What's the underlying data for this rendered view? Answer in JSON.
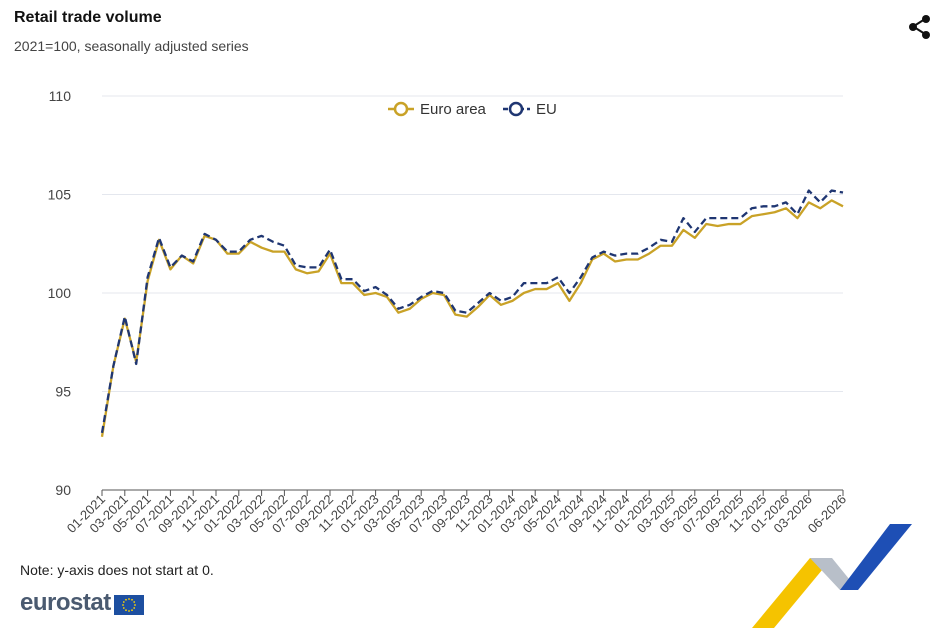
{
  "header": {
    "title": "Retail trade volume",
    "subtitle": "2021=100, seasonally adjusted series"
  },
  "icons": {
    "share": "share-icon"
  },
  "note": "Note: y-axis does not start at 0.",
  "brand": {
    "name": "eurostat"
  },
  "colors": {
    "euro_area": "#c9a227",
    "eu": "#1f3672",
    "grid": "#e4e7ee"
  },
  "chart_data": {
    "type": "line",
    "title": "Retail trade volume",
    "subtitle": "2021=100, seasonally adjusted series",
    "ylim": [
      90,
      110
    ],
    "yticks": [
      90,
      95,
      100,
      105,
      110
    ],
    "grid": true,
    "legend": "top-center",
    "x": [
      "01-2021",
      "02-2021",
      "03-2021",
      "04-2021",
      "05-2021",
      "06-2021",
      "07-2021",
      "08-2021",
      "09-2021",
      "10-2021",
      "11-2021",
      "12-2021",
      "01-2022",
      "02-2022",
      "03-2022",
      "04-2022",
      "05-2022",
      "06-2022",
      "07-2022",
      "08-2022",
      "09-2022",
      "10-2022",
      "11-2022",
      "12-2022",
      "01-2023",
      "02-2023",
      "03-2023",
      "04-2023",
      "05-2023",
      "06-2023",
      "07-2023",
      "08-2023",
      "09-2023",
      "10-2023",
      "11-2023",
      "12-2023",
      "01-2024",
      "02-2024",
      "03-2024",
      "04-2024",
      "05-2024",
      "06-2024",
      "07-2024",
      "08-2024",
      "09-2024",
      "10-2024",
      "11-2024",
      "12-2024",
      "01-2025",
      "02-2025",
      "03-2025",
      "04-2025",
      "05-2025",
      "06-2025",
      "07-2025",
      "08-2025",
      "09-2025",
      "10-2025",
      "11-2025",
      "12-2025",
      "01-2026",
      "02-2026",
      "03-2026",
      "04-2026",
      "05-2026",
      "06-2026"
    ],
    "xticks": [
      "01-2021",
      "03-2021",
      "05-2021",
      "07-2021",
      "09-2021",
      "11-2021",
      "01-2022",
      "03-2022",
      "05-2022",
      "07-2022",
      "09-2022",
      "11-2022",
      "01-2023",
      "03-2023",
      "05-2023",
      "07-2023",
      "09-2023",
      "11-2023",
      "01-2024",
      "03-2024",
      "05-2024",
      "07-2024",
      "09-2024",
      "11-2024",
      "01-2025",
      "03-2025",
      "05-2025",
      "07-2025",
      "09-2025",
      "11-2025",
      "01-2026",
      "03-2026",
      "06-2026"
    ],
    "series": [
      {
        "name": "Euro area",
        "color": "#c9a227",
        "dash": "solid",
        "values": [
          92.7,
          96.3,
          98.7,
          96.5,
          100.6,
          102.7,
          101.2,
          101.9,
          101.5,
          102.9,
          102.7,
          102.0,
          102.0,
          102.6,
          102.3,
          102.1,
          102.1,
          101.2,
          101.0,
          101.1,
          102.0,
          100.5,
          100.5,
          99.9,
          100.0,
          99.8,
          99.0,
          99.2,
          99.7,
          100.0,
          99.9,
          98.9,
          98.8,
          99.3,
          99.9,
          99.4,
          99.6,
          100.0,
          100.2,
          100.2,
          100.5,
          99.6,
          100.5,
          101.7,
          102.0,
          101.6,
          101.7,
          101.7,
          102.0,
          102.4,
          102.4,
          103.2,
          102.8,
          103.5,
          103.4,
          103.5,
          103.5,
          103.9,
          104.0,
          104.1,
          104.3,
          103.8,
          104.6,
          104.3,
          104.7,
          104.4
        ]
      },
      {
        "name": "EU",
        "color": "#1f3672",
        "dash": "dashed",
        "values": [
          92.9,
          96.3,
          98.8,
          96.4,
          100.8,
          102.8,
          101.3,
          101.9,
          101.6,
          103.0,
          102.7,
          102.1,
          102.1,
          102.7,
          102.9,
          102.6,
          102.4,
          101.4,
          101.3,
          101.3,
          102.2,
          100.7,
          100.7,
          100.1,
          100.3,
          99.9,
          99.2,
          99.4,
          99.8,
          100.1,
          100.0,
          99.1,
          99.0,
          99.5,
          100.0,
          99.6,
          99.8,
          100.5,
          100.5,
          100.5,
          100.8,
          100.0,
          100.8,
          101.8,
          102.1,
          101.9,
          102.0,
          102.0,
          102.3,
          102.7,
          102.6,
          103.8,
          103.1,
          103.8,
          103.8,
          103.8,
          103.8,
          104.3,
          104.4,
          104.4,
          104.6,
          104.0,
          105.2,
          104.6,
          105.2,
          105.1
        ]
      }
    ]
  }
}
